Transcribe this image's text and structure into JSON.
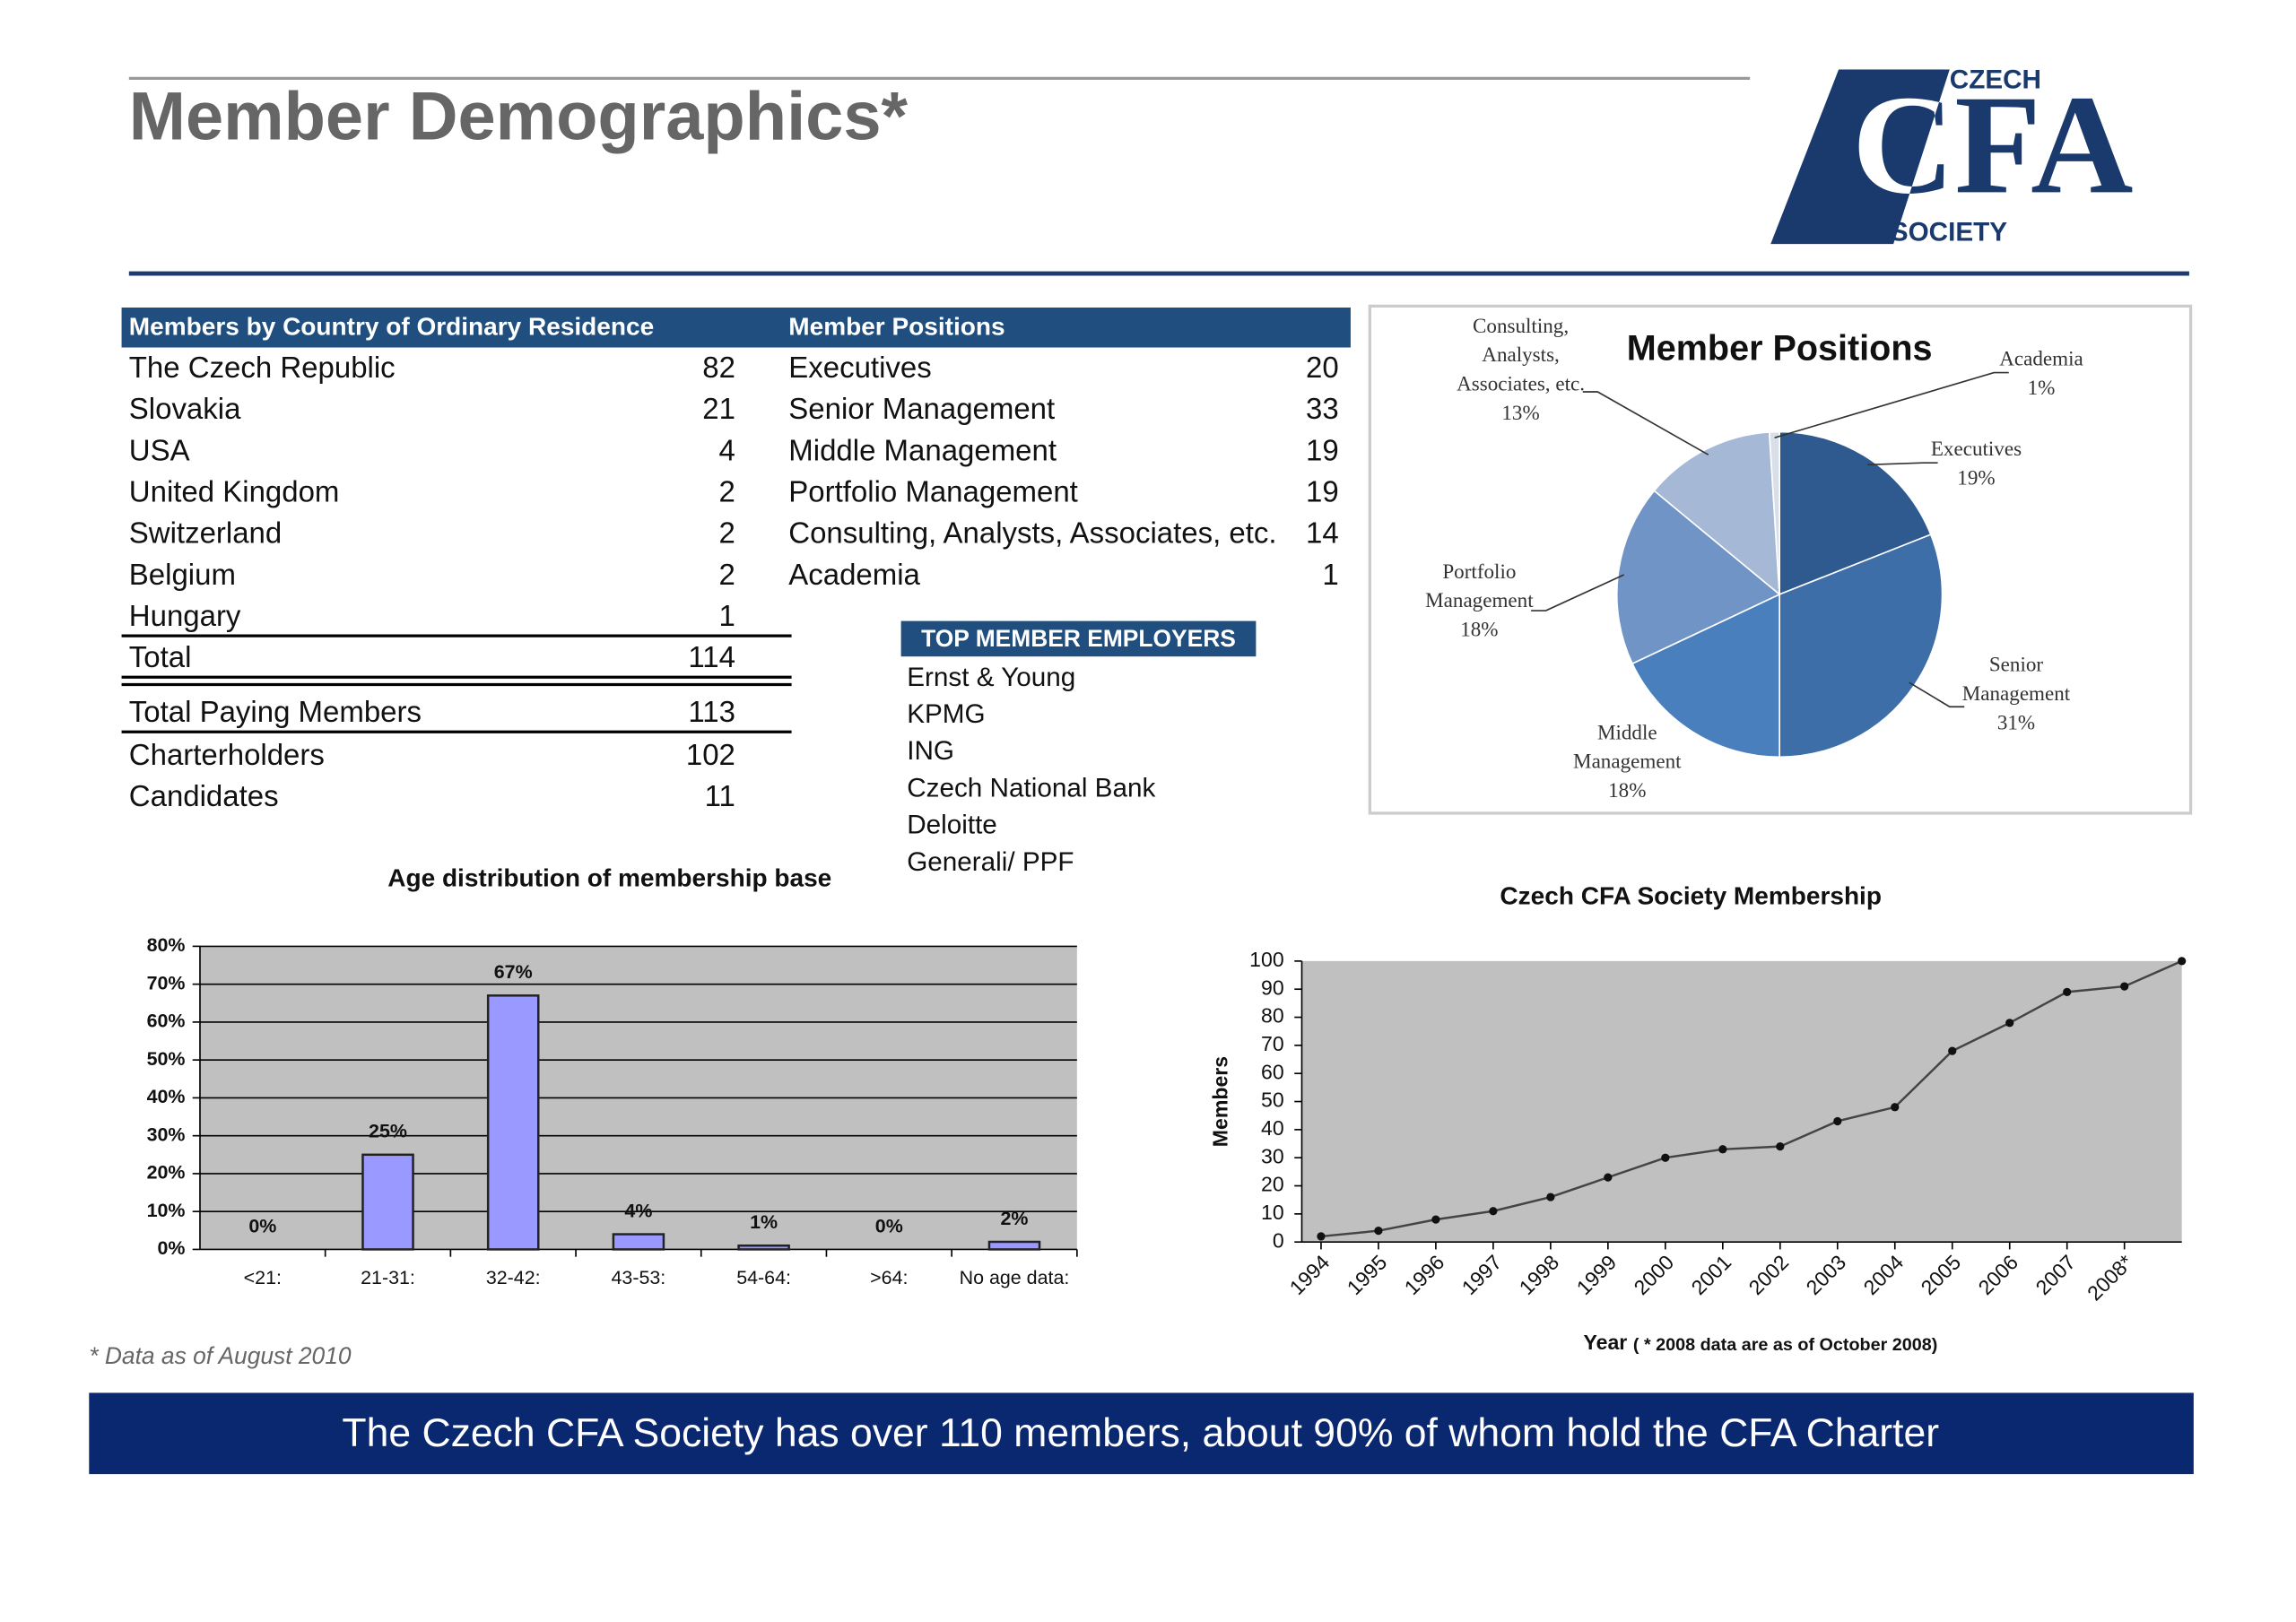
{
  "header": {
    "title": "Member Demographics*"
  },
  "logo": {
    "top": "CZECH",
    "main": "CFA",
    "bottom": "SOCIETY"
  },
  "country_table": {
    "header": "Members by Country of Ordinary Residence",
    "rows": [
      [
        "The Czech Republic",
        82
      ],
      [
        "Slovakia",
        21
      ],
      [
        "USA",
        4
      ],
      [
        "United Kingdom",
        2
      ],
      [
        "Switzerland",
        2
      ],
      [
        "Belgium",
        2
      ],
      [
        "Hungary",
        1
      ]
    ],
    "total": [
      "Total",
      114
    ],
    "summary": [
      [
        "Total Paying Members",
        113
      ],
      [
        "Charterholders",
        102
      ],
      [
        "Candidates",
        11
      ]
    ]
  },
  "positions_table": {
    "header": "Member Positions",
    "rows": [
      [
        "Executives",
        20
      ],
      [
        "Senior Management",
        33
      ],
      [
        "Middle Management",
        19
      ],
      [
        "Portfolio Management",
        19
      ],
      [
        "Consulting, Analysts, Associates, etc.",
        14
      ],
      [
        "Academia",
        1
      ]
    ]
  },
  "employers": {
    "header": "TOP MEMBER EMPLOYERS",
    "items": [
      "Ernst & Young",
      "KPMG",
      "ING",
      "Czech National Bank",
      "Deloitte",
      "Generali/ PPF"
    ]
  },
  "chart_data": [
    {
      "type": "pie",
      "title": "Member Positions",
      "categories": [
        "Executives",
        "Senior Management",
        "Middle Management",
        "Portfolio Management",
        "Consulting, Analysts, Associates, etc.",
        "Academia"
      ],
      "values": [
        19,
        31,
        18,
        18,
        13,
        1
      ],
      "value_labels": [
        "19%",
        "31%",
        "18%",
        "18%",
        "13%",
        "1%"
      ],
      "colors": [
        "#2f5a8f",
        "#3d6ea8",
        "#4a7fbe",
        "#7194c6",
        "#a5b8d6",
        "#d9dfe9"
      ]
    },
    {
      "type": "bar",
      "title": "Age distribution of membership base",
      "categories": [
        "<21:",
        "21-31:",
        "32-42:",
        "43-53:",
        "54-64:",
        ">64:",
        "No age data:"
      ],
      "values": [
        0,
        25,
        67,
        4,
        1,
        0,
        2
      ],
      "value_labels": [
        "0%",
        "25%",
        "67%",
        "4%",
        "1%",
        "0%",
        "2%"
      ],
      "color": "#9999ff",
      "ylim": [
        0,
        80
      ],
      "yticks": [
        {
          "value": 0,
          "label": "0%"
        },
        {
          "value": 10,
          "label": "10%"
        },
        {
          "value": 20,
          "label": "20%"
        },
        {
          "value": 30,
          "label": "30%"
        },
        {
          "value": 40,
          "label": "40%"
        },
        {
          "value": 50,
          "label": "50%"
        },
        {
          "value": 60,
          "label": "60%"
        },
        {
          "value": 70,
          "label": "70%"
        },
        {
          "value": 80,
          "label": "80%"
        }
      ],
      "grid": true
    },
    {
      "type": "line",
      "title": "Czech CFA Society Membership",
      "y_label": "Members",
      "x_label": "Year",
      "x_label_note": "( * 2008 data are as of October 2008)",
      "categories": [
        "1994",
        "1995",
        "1996",
        "1997",
        "1998",
        "1999",
        "2000",
        "2001",
        "2002",
        "2003",
        "2004",
        "2005",
        "2006",
        "2007",
        "2008*",
        null
      ],
      "values": [
        2,
        4,
        8,
        11,
        16,
        23,
        30,
        33,
        34,
        43,
        48,
        68,
        78,
        89,
        91,
        100
      ],
      "color": "#444444",
      "ylim": [
        0,
        100
      ],
      "yticks": [
        0,
        10,
        20,
        30,
        40,
        50,
        60,
        70,
        80,
        90,
        100
      ],
      "grid": false
    }
  ],
  "footnote": "* Data as of August 2010",
  "banner": "The Czech CFA Society has over 110 members, about 90% of whom hold the CFA Charter"
}
